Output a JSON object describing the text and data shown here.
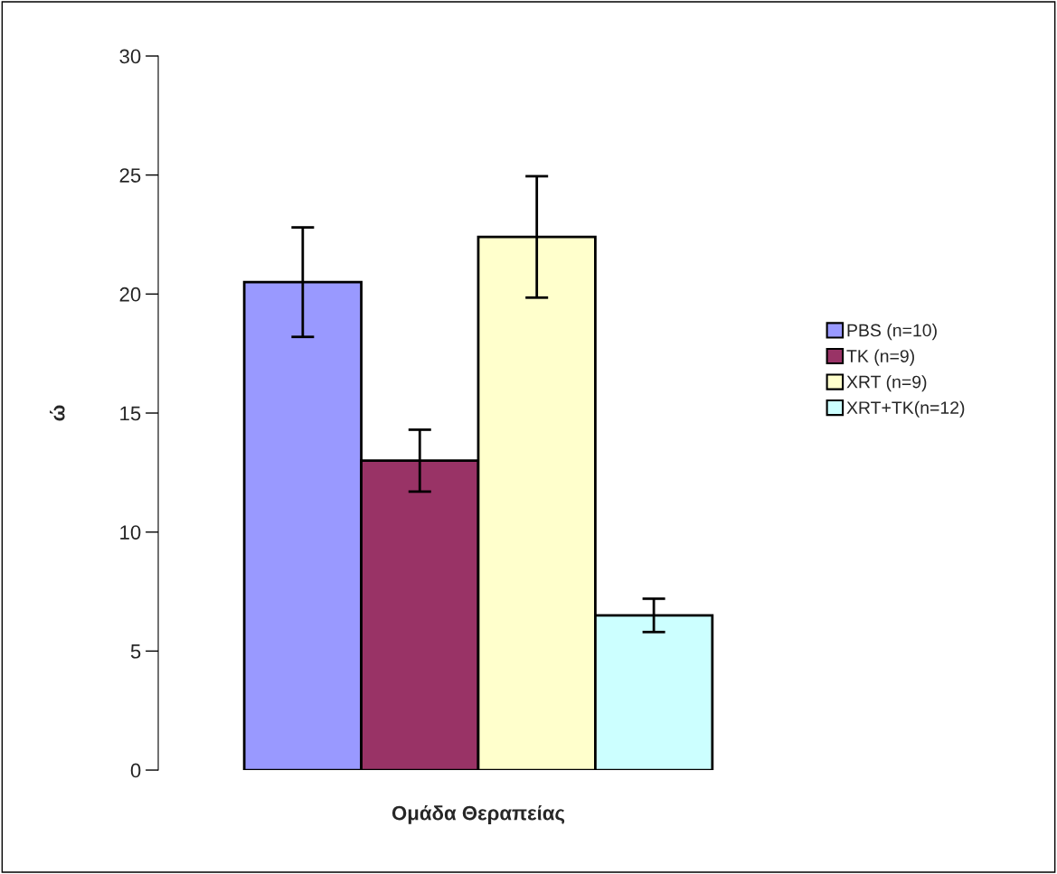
{
  "chart_data": {
    "type": "bar",
    "xlabel": "Ομάδα Θεραπείας",
    "ylabel": "ώ",
    "categories": [
      null
    ],
    "series": [
      {
        "name": "PBS (n=10)",
        "color": "#9999ff",
        "values": [
          20.5
        ],
        "errors": [
          2.3
        ]
      },
      {
        "name": "TK (n=9)",
        "color": "#993366",
        "values": [
          13.0
        ],
        "errors": [
          1.3
        ]
      },
      {
        "name": "XRT (n=9)",
        "color": "#ffffcc",
        "values": [
          22.4
        ],
        "errors": [
          2.55
        ]
      },
      {
        "name": "XRT+TK(n=12)",
        "color": "#ccffff",
        "values": [
          6.5
        ],
        "errors": [
          0.7
        ]
      }
    ],
    "ylim": [
      0,
      30
    ],
    "yticks": [
      0,
      5,
      10,
      15,
      20,
      25,
      30
    ],
    "grid": false,
    "legend": "right",
    "tick_labels": "y"
  }
}
